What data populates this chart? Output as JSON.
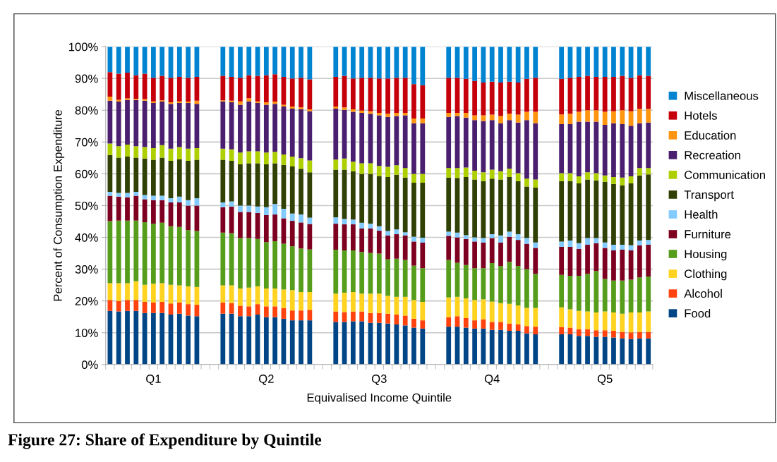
{
  "chart_data": {
    "type": "bar",
    "stacked": true,
    "categories": [
      null,
      null,
      null,
      null,
      null,
      "Q1",
      null,
      null,
      null,
      null,
      null,
      null,
      null,
      null,
      null,
      null,
      null,
      null,
      "Q2",
      null,
      null,
      null,
      null,
      null,
      null,
      null,
      null,
      null,
      null,
      null,
      null,
      "Q3",
      null,
      null,
      null,
      null,
      null,
      null,
      null,
      null,
      null,
      null,
      null,
      null,
      "Q4",
      null,
      null,
      null,
      null,
      null,
      null,
      null,
      null,
      null,
      null,
      null,
      null,
      "Q5",
      null,
      null,
      null,
      null,
      null
    ],
    "xlabel": "Equivalised Income Quintile",
    "ylabel": "Percent of Consumption Expenditure",
    "ylim": [
      0,
      100
    ],
    "yticks": [
      {
        "value": 0,
        "label": "0%"
      },
      {
        "value": 10,
        "label": "10%"
      },
      {
        "value": 20,
        "label": "20%"
      },
      {
        "value": 30,
        "label": "30%"
      },
      {
        "value": 40,
        "label": "40%"
      },
      {
        "value": 50,
        "label": "50%"
      },
      {
        "value": 60,
        "label": "60%"
      },
      {
        "value": 70,
        "label": "70%"
      },
      {
        "value": 80,
        "label": "80%"
      },
      {
        "value": 90,
        "label": "90%"
      },
      {
        "value": 100,
        "label": "100%"
      }
    ],
    "grid": "y",
    "legend": "right",
    "annotations": [
      "Figure 27: Share of Expenditure by Quintile"
    ],
    "series": [
      {
        "name": "Food",
        "color": "#004586",
        "values": [
          16.9,
          16.7,
          16.9,
          16.9,
          16.2,
          16.2,
          16.2,
          15.7,
          16.0,
          15.4,
          15.2,
          null,
          null,
          16.0,
          16.0,
          15.2,
          15.2,
          15.7,
          14.9,
          14.9,
          14.4,
          13.9,
          13.9,
          13.9,
          null,
          null,
          13.4,
          13.4,
          13.6,
          13.6,
          13.1,
          13.1,
          12.9,
          12.6,
          12.3,
          11.6,
          11.3,
          null,
          null,
          11.9,
          11.9,
          11.6,
          11.3,
          11.3,
          10.9,
          10.9,
          10.6,
          10.6,
          9.8,
          9.5,
          null,
          null,
          9.5,
          9.5,
          9.0,
          9.0,
          8.7,
          8.7,
          8.5,
          8.2,
          8.0,
          8.2,
          8.2
        ]
      },
      {
        "name": "Alcohol",
        "color": "#ff420e",
        "values": [
          3.4,
          3.3,
          3.4,
          3.4,
          3.5,
          3.3,
          3.5,
          3.5,
          3.5,
          3.6,
          3.6,
          null,
          null,
          3.5,
          3.3,
          3.3,
          3.1,
          3.3,
          3.4,
          3.4,
          3.3,
          3.1,
          3.1,
          3.3,
          null,
          null,
          3.3,
          3.1,
          3.1,
          3.1,
          3.1,
          3.1,
          3.1,
          3.1,
          3.1,
          2.8,
          2.6,
          null,
          null,
          3.0,
          3.3,
          3.0,
          2.6,
          2.9,
          2.5,
          2.5,
          2.3,
          2.0,
          2.3,
          2.4,
          null,
          null,
          2.3,
          2.1,
          2.1,
          2.1,
          2.1,
          2.1,
          2.1,
          2.1,
          2.1,
          2.1,
          2.1
        ]
      },
      {
        "name": "Clothing",
        "color": "#ffd320",
        "values": [
          5.3,
          5.6,
          5.3,
          5.9,
          5.4,
          5.9,
          5.9,
          5.9,
          5.4,
          5.6,
          5.6,
          null,
          null,
          5.4,
          5.6,
          5.4,
          5.9,
          5.6,
          5.6,
          5.6,
          5.9,
          6.4,
          5.8,
          5.6,
          null,
          null,
          5.6,
          6.1,
          6.1,
          5.6,
          6.1,
          6.1,
          5.6,
          5.6,
          5.9,
          5.9,
          5.8,
          null,
          null,
          6.2,
          6.1,
          6.2,
          6.4,
          6.3,
          6.4,
          5.9,
          6.2,
          6.0,
          5.7,
          5.9,
          null,
          null,
          6.2,
          5.8,
          5.8,
          5.6,
          5.6,
          5.9,
          5.8,
          5.7,
          6.3,
          6.1,
          6.4
        ]
      },
      {
        "name": "Housing",
        "color": "#579d1c",
        "values": [
          19.5,
          19.7,
          19.7,
          19.1,
          19.7,
          18.9,
          19.0,
          18.4,
          18.4,
          17.7,
          17.6,
          null,
          null,
          16.6,
          16.4,
          15.9,
          15.6,
          14.9,
          14.6,
          14.9,
          14.4,
          13.8,
          13.7,
          13.4,
          null,
          null,
          13.8,
          13.3,
          13.1,
          13.1,
          12.8,
          12.6,
          11.5,
          12.0,
          11.6,
          10.8,
          10.6,
          null,
          null,
          11.8,
          10.7,
          10.5,
          10.0,
          9.8,
          12.1,
          11.7,
          13.2,
          12.4,
          12.2,
          10.7,
          null,
          null,
          10.2,
          10.5,
          11.0,
          11.8,
          13.0,
          10.2,
          10.0,
          10.4,
          10.3,
          11.0,
          11.0
        ]
      },
      {
        "name": "Furniture",
        "color": "#7e0021",
        "values": [
          8.0,
          7.5,
          7.3,
          7.8,
          7.2,
          7.4,
          7.1,
          7.5,
          7.7,
          7.7,
          8.0,
          null,
          null,
          8.0,
          8.4,
          8.2,
          8.2,
          8.2,
          8.5,
          8.4,
          8.0,
          8.0,
          8.2,
          8.0,
          null,
          null,
          8.2,
          8.2,
          8.2,
          7.4,
          7.7,
          7.2,
          7.5,
          7.7,
          7.7,
          7.6,
          8.1,
          null,
          null,
          7.6,
          8.0,
          8.2,
          8.4,
          8.1,
          7.9,
          7.4,
          7.9,
          8.2,
          8.0,
          8.2,
          null,
          null,
          8.8,
          9.1,
          8.5,
          9.2,
          8.8,
          9.8,
          9.5,
          9.7,
          9.2,
          10.1,
          10.0
        ]
      },
      {
        "name": "Health",
        "color": "#83caff",
        "values": [
          1.2,
          1.2,
          1.4,
          1.2,
          1.3,
          1.4,
          1.4,
          1.3,
          1.8,
          1.7,
          2.3,
          null,
          null,
          1.5,
          1.6,
          2.0,
          2.0,
          2.0,
          2.5,
          3.3,
          3.0,
          2.3,
          2.5,
          2.0,
          null,
          null,
          2.0,
          1.7,
          1.5,
          1.8,
          1.5,
          1.4,
          1.4,
          1.5,
          1.0,
          1.5,
          1.5,
          null,
          null,
          1.3,
          1.5,
          1.2,
          1.3,
          1.4,
          1.2,
          2.2,
          1.6,
          1.8,
          1.8,
          1.7,
          null,
          null,
          1.7,
          2.0,
          1.8,
          2.1,
          1.6,
          1.7,
          1.8,
          1.6,
          1.6,
          1.5,
          1.5
        ]
      },
      {
        "name": "Transport",
        "color": "#314004",
        "values": [
          11.6,
          11.1,
          11.4,
          10.8,
          11.5,
          11.3,
          12.0,
          11.8,
          11.8,
          12.4,
          12.1,
          null,
          null,
          13.4,
          12.8,
          13.0,
          13.3,
          13.6,
          13.5,
          12.8,
          13.8,
          14.8,
          14.4,
          14.3,
          null,
          null,
          15.0,
          15.5,
          15.2,
          15.4,
          15.7,
          15.8,
          17.0,
          17.2,
          17.2,
          17.0,
          17.3,
          null,
          null,
          17.0,
          17.2,
          18.3,
          18.2,
          17.9,
          17.5,
          17.6,
          17.2,
          16.7,
          16.2,
          17.3,
          null,
          null,
          19.0,
          18.7,
          18.8,
          18.4,
          18.1,
          19.1,
          19.1,
          18.7,
          19.5,
          20.5,
          20.6
        ]
      },
      {
        "name": "Communication",
        "color": "#aecf00",
        "values": [
          3.6,
          3.6,
          3.8,
          3.6,
          3.6,
          3.7,
          3.9,
          3.8,
          3.8,
          3.8,
          3.7,
          null,
          null,
          3.5,
          3.6,
          3.7,
          3.8,
          3.8,
          3.7,
          3.6,
          3.3,
          3.1,
          3.3,
          3.7,
          null,
          null,
          3.2,
          3.5,
          3.0,
          3.3,
          3.3,
          3.2,
          3.2,
          3.0,
          3.0,
          2.8,
          2.8,
          null,
          null,
          3.0,
          3.1,
          3.0,
          2.8,
          2.8,
          2.8,
          2.6,
          2.6,
          2.5,
          2.5,
          2.5,
          null,
          null,
          2.5,
          2.5,
          2.2,
          2.3,
          2.3,
          2.0,
          2.2,
          2.4,
          2.2,
          2.3,
          2.0
        ]
      },
      {
        "name": "Recreation",
        "color": "#4b1f6f",
        "values": [
          13.5,
          14.0,
          14.0,
          14.5,
          14.6,
          14.2,
          13.7,
          14.1,
          13.9,
          14.4,
          13.9,
          null,
          null,
          14.9,
          14.8,
          15.0,
          15.7,
          15.2,
          15.0,
          15.1,
          15.1,
          15.1,
          15.4,
          15.5,
          null,
          null,
          16.0,
          15.3,
          15.7,
          15.9,
          15.6,
          15.9,
          15.7,
          15.5,
          16.6,
          15.9,
          15.9,
          null,
          null,
          16.1,
          16.4,
          15.7,
          15.9,
          16.1,
          15.6,
          15.1,
          15.3,
          15.9,
          18.4,
          17.7,
          null,
          null,
          15.4,
          15.4,
          17.2,
          15.9,
          16.2,
          15.9,
          16.9,
          16.8,
          15.9,
          14.1,
          14.3
        ]
      },
      {
        "name": "Education",
        "color": "#ff950e",
        "values": [
          1.3,
          0.6,
          0.5,
          0.4,
          0.5,
          0.5,
          0.4,
          0.5,
          0.5,
          0.4,
          1.0,
          null,
          null,
          0.3,
          0.5,
          1.1,
          1.0,
          0.5,
          0.8,
          0.7,
          0.5,
          0.7,
          0.6,
          0.6,
          null,
          null,
          0.7,
          0.8,
          0.8,
          0.7,
          0.8,
          0.8,
          1.0,
          1.0,
          0.8,
          1.5,
          1.5,
          null,
          null,
          1.3,
          1.0,
          1.5,
          1.5,
          1.8,
          1.7,
          2.3,
          2.0,
          2.5,
          2.6,
          3.6,
          null,
          null,
          3.1,
          3.3,
          3.1,
          3.6,
          3.6,
          4.1,
          3.8,
          4.4,
          4.6,
          4.5,
          4.3
        ]
      },
      {
        "name": "Hotels",
        "color": "#c5000b",
        "values": [
          7.7,
          8.2,
          8.1,
          7.4,
          8.0,
          7.4,
          7.7,
          7.7,
          7.7,
          7.5,
          7.5,
          null,
          null,
          7.7,
          7.5,
          7.4,
          7.2,
          8.0,
          8.5,
          8.6,
          8.8,
          8.8,
          9.3,
          9.4,
          null,
          null,
          9.3,
          9.9,
          9.7,
          10.3,
          10.5,
          10.8,
          11.1,
          11.0,
          11.0,
          10.8,
          10.5,
          null,
          null,
          11.0,
          11.0,
          10.7,
          10.8,
          10.3,
          10.4,
          10.5,
          10.1,
          10.1,
          10.4,
          10.7,
          null,
          null,
          11.2,
          11.3,
          11.0,
          10.8,
          10.5,
          11.0,
          10.8,
          10.8,
          10.5,
          10.6,
          10.4
        ]
      },
      {
        "name": "Miscellaneous",
        "color": "#0084d1",
        "values": [
          8.0,
          8.5,
          8.2,
          9.0,
          8.5,
          9.8,
          9.2,
          9.8,
          9.5,
          9.8,
          9.5,
          null,
          null,
          9.2,
          9.5,
          9.8,
          9.0,
          9.2,
          9.0,
          8.7,
          9.5,
          10.0,
          9.8,
          10.3,
          null,
          null,
          9.5,
          9.2,
          10.0,
          9.8,
          9.8,
          10.0,
          10.0,
          9.8,
          9.8,
          11.8,
          12.1,
          null,
          null,
          9.8,
          9.8,
          10.1,
          10.8,
          11.3,
          11.0,
          11.3,
          11.0,
          11.3,
          10.1,
          9.8,
          null,
          null,
          10.1,
          9.8,
          9.5,
          9.2,
          9.5,
          9.5,
          9.5,
          9.2,
          9.8,
          9.0,
          9.2
        ]
      }
    ]
  }
}
